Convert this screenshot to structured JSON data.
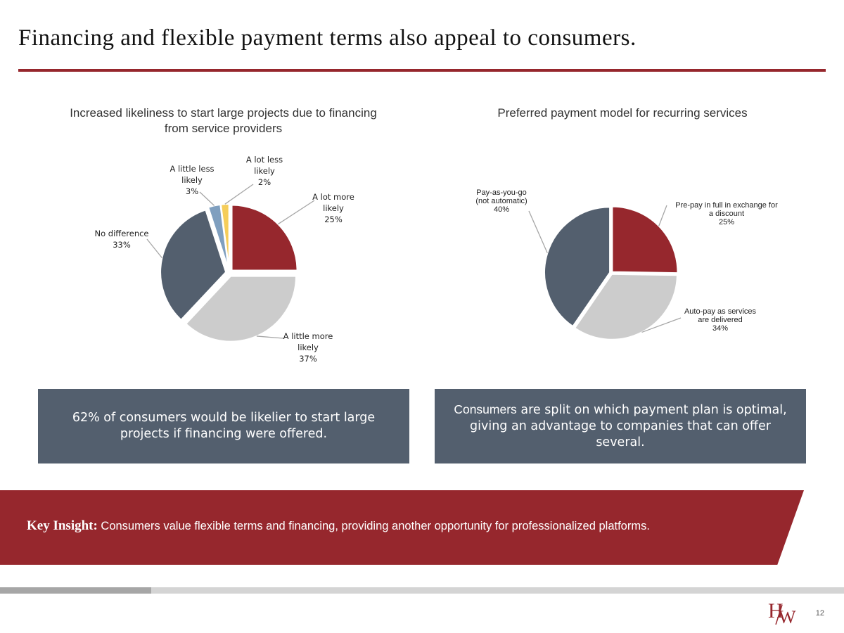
{
  "slide_title": "Financing and flexible payment terms also appeal to consumers.",
  "chart_data": [
    {
      "type": "pie",
      "title": "Increased likeliness to start large projects due to financing from service providers",
      "slices": [
        {
          "label": "A lot more likely",
          "value": 25,
          "value_label": "25%",
          "color": "#96272d"
        },
        {
          "label": "A little more likely",
          "value": 37,
          "value_label": "37%",
          "color": "#cccccc"
        },
        {
          "label": "No difference",
          "value": 33,
          "value_label": "33%",
          "color": "#535f6e"
        },
        {
          "label": "A little less likely",
          "value": 3,
          "value_label": "3%",
          "color": "#7f9fbf"
        },
        {
          "label": "A lot less likely",
          "value": 2,
          "value_label": "2%",
          "color": "#f5cd5a"
        }
      ]
    },
    {
      "type": "pie",
      "title": "Preferred payment model for recurring services",
      "slices": [
        {
          "label": "Pre-pay in full in exchange for a discount",
          "value": 25,
          "value_label": "25%",
          "color": "#96272d"
        },
        {
          "label": "Auto-pay as services are delivered",
          "value": 34,
          "value_label": "34%",
          "color": "#cccccc"
        },
        {
          "label": "Pay-as-you-go (not automatic)",
          "value": 40,
          "value_label": "40%",
          "color": "#535f6e"
        }
      ]
    }
  ],
  "callouts": {
    "left": "62% of consumers would be likelier to start large projects if financing were offered.",
    "right_lead": "Consumers",
    "right_rest": " are split on which payment plan is optimal, giving an advantage to companies that can offer several."
  },
  "key_insight": {
    "label": "Key Insight:",
    "text": " Consumers value flexible terms and financing, providing another opportunity for professionalized platforms."
  },
  "footer": {
    "logo_text": "HW",
    "page_number": "12"
  }
}
